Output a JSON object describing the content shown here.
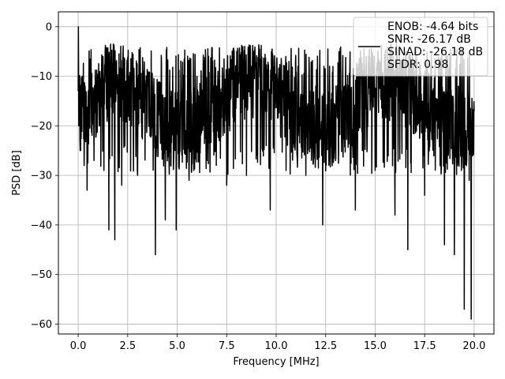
{
  "chart_data": {
    "type": "line",
    "title": "",
    "xlabel": "Frequency [MHz]",
    "ylabel": "PSD [dB]",
    "xlim": [
      -1.0,
      21.0
    ],
    "ylim": [
      -62.0,
      3.0
    ],
    "grid": true,
    "legend_placement": "top-right",
    "x_ticks": [
      0.0,
      2.5,
      5.0,
      7.5,
      10.0,
      12.5,
      15.0,
      17.5,
      20.0
    ],
    "x_tick_labels": [
      "0.0",
      "2.5",
      "5.0",
      "7.5",
      "10.0",
      "12.5",
      "15.0",
      "17.5",
      "20.0"
    ],
    "y_ticks": [
      0,
      -10,
      -20,
      -30,
      -40,
      -50,
      -60
    ],
    "y_tick_labels": [
      "0",
      "−10",
      "−20",
      "−30",
      "−40",
      "−50",
      "−60"
    ],
    "series": [
      {
        "name": "ENOB: -4.64 bits\nSNR: -26.17 dB\nSINAD: -26.18 dB\nSFDR: 0.98",
        "color": "#000000",
        "x": [
          0.0,
          0.01,
          0.02,
          0.03,
          0.05,
          0.1,
          0.2,
          0.3,
          0.35,
          0.45,
          0.6,
          0.8,
          1.0,
          1.3,
          1.55,
          1.65,
          1.85,
          2.0,
          2.2,
          2.6,
          3.0,
          3.4,
          3.7,
          3.9,
          4.1,
          4.4,
          4.7,
          4.95,
          5.2,
          5.6,
          6.0,
          6.5,
          7.0,
          7.5,
          8.0,
          8.5,
          9.0,
          9.5,
          9.7,
          10.0,
          10.5,
          11.0,
          11.1,
          11.5,
          12.0,
          12.35,
          12.6,
          13.0,
          13.5,
          14.0,
          14.5,
          15.0,
          15.5,
          16.0,
          16.5,
          16.65,
          17.0,
          17.5,
          18.0,
          18.5,
          18.8,
          18.9,
          19.0,
          19.2,
          19.5,
          19.75,
          19.85,
          20.0
        ],
        "y": [
          -13,
          0,
          -8,
          -20,
          -12,
          -25,
          -10,
          -28,
          -12,
          -33,
          -14,
          -27,
          -13,
          -29,
          -41,
          -14,
          -43,
          -12,
          -32,
          -15,
          -30,
          -12,
          -22,
          -46,
          -14,
          -39,
          -13,
          -41,
          -12,
          -31,
          -10,
          -27,
          -12,
          -32,
          -9,
          -30,
          -11,
          -24,
          -37,
          -13,
          -29,
          -11,
          -8,
          -30,
          -12,
          -40,
          -13,
          -27,
          -11,
          -37,
          -12,
          -29,
          -13,
          -38,
          -14,
          -45,
          -12,
          -34,
          -13,
          -44,
          -14,
          -25,
          -46,
          -12,
          -57,
          -31,
          -59,
          -17
        ]
      }
    ]
  }
}
